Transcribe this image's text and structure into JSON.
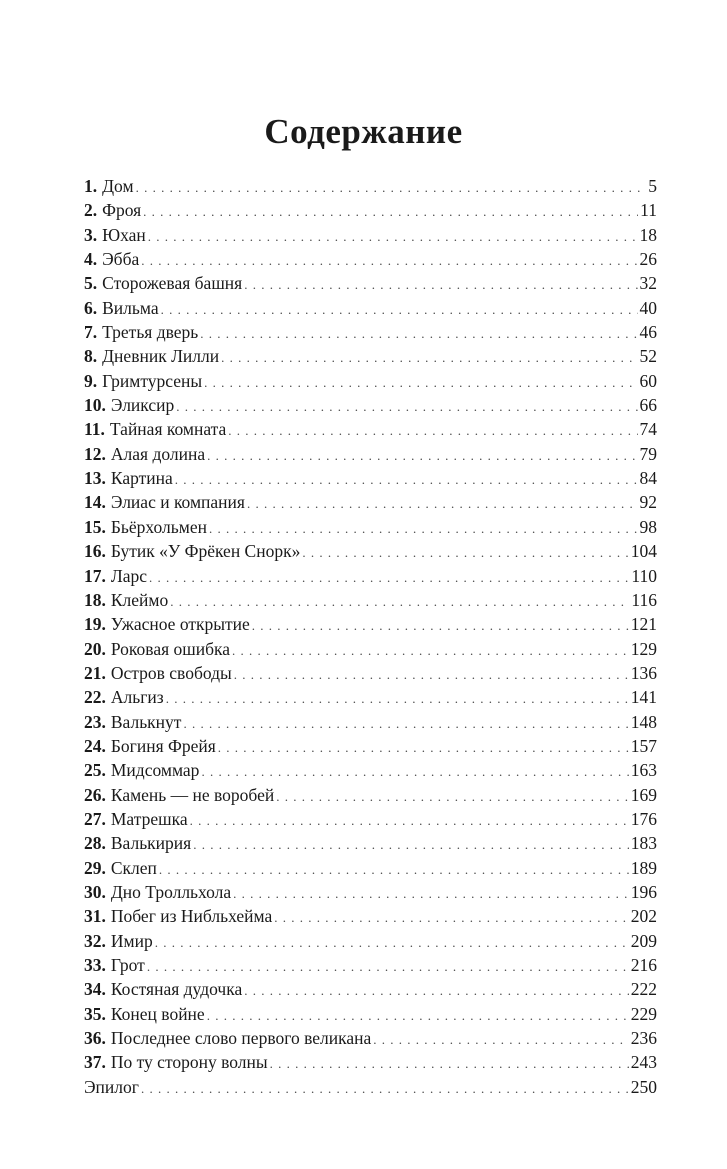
{
  "title": "Содержание",
  "items": [
    {
      "num": "1.",
      "label": "Дом",
      "page": "5"
    },
    {
      "num": "2.",
      "label": "Фроя",
      "page": "11"
    },
    {
      "num": "3.",
      "label": "Юхан",
      "page": "18"
    },
    {
      "num": "4.",
      "label": "Эбба",
      "page": "26"
    },
    {
      "num": "5.",
      "label": "Сторожевая башня",
      "page": "32"
    },
    {
      "num": "6.",
      "label": "Вильма",
      "page": "40"
    },
    {
      "num": "7.",
      "label": "Третья дверь",
      "page": "46"
    },
    {
      "num": "8.",
      "label": "Дневник Лилли",
      "page": "52"
    },
    {
      "num": "9.",
      "label": "Гримтурсены",
      "page": "60"
    },
    {
      "num": "10.",
      "label": "Эликсир",
      "page": "66"
    },
    {
      "num": "11.",
      "label": "Тайная комната",
      "page": "74"
    },
    {
      "num": "12.",
      "label": "Алая долина",
      "page": "79"
    },
    {
      "num": "13.",
      "label": "Картина",
      "page": "84"
    },
    {
      "num": "14.",
      "label": "Элиас и компания",
      "page": "92"
    },
    {
      "num": "15.",
      "label": "Бьёрхольмен",
      "page": "98"
    },
    {
      "num": "16.",
      "label": "Бутик «У Фрёкен Снорк»",
      "page": "104"
    },
    {
      "num": "17.",
      "label": "Ларс",
      "page": "110"
    },
    {
      "num": "18.",
      "label": "Клеймо",
      "page": "116"
    },
    {
      "num": "19.",
      "label": "Ужасное открытие",
      "page": "121"
    },
    {
      "num": "20.",
      "label": "Роковая ошибка",
      "page": "129"
    },
    {
      "num": "21.",
      "label": "Остров свободы",
      "page": "136"
    },
    {
      "num": "22.",
      "label": "Альгиз",
      "page": "141"
    },
    {
      "num": "23.",
      "label": "Валькнут",
      "page": "148"
    },
    {
      "num": "24.",
      "label": "Богиня Фрейя",
      "page": "157"
    },
    {
      "num": "25.",
      "label": "Мидсоммар",
      "page": "163"
    },
    {
      "num": "26.",
      "label": "Камень — не воробей",
      "page": "169"
    },
    {
      "num": "27.",
      "label": "Матрешка",
      "page": "176"
    },
    {
      "num": "28.",
      "label": "Валькирия",
      "page": "183"
    },
    {
      "num": "29.",
      "label": "Склеп",
      "page": "189"
    },
    {
      "num": "30.",
      "label": "Дно Тролльхола",
      "page": "196"
    },
    {
      "num": "31.",
      "label": "Побег из Нибльхейма",
      "page": "202"
    },
    {
      "num": "32.",
      "label": "Имир",
      "page": "209"
    },
    {
      "num": "33.",
      "label": "Грот",
      "page": "216"
    },
    {
      "num": "34.",
      "label": "Костяная дудочка",
      "page": "222"
    },
    {
      "num": "35.",
      "label": "Конец войне",
      "page": "229"
    },
    {
      "num": "36.",
      "label": "Последнее слово первого великана",
      "page": "236"
    },
    {
      "num": "37.",
      "label": "По ту сторону волны",
      "page": "243"
    },
    {
      "num": "",
      "label": "Эпилог",
      "page": "250"
    }
  ]
}
